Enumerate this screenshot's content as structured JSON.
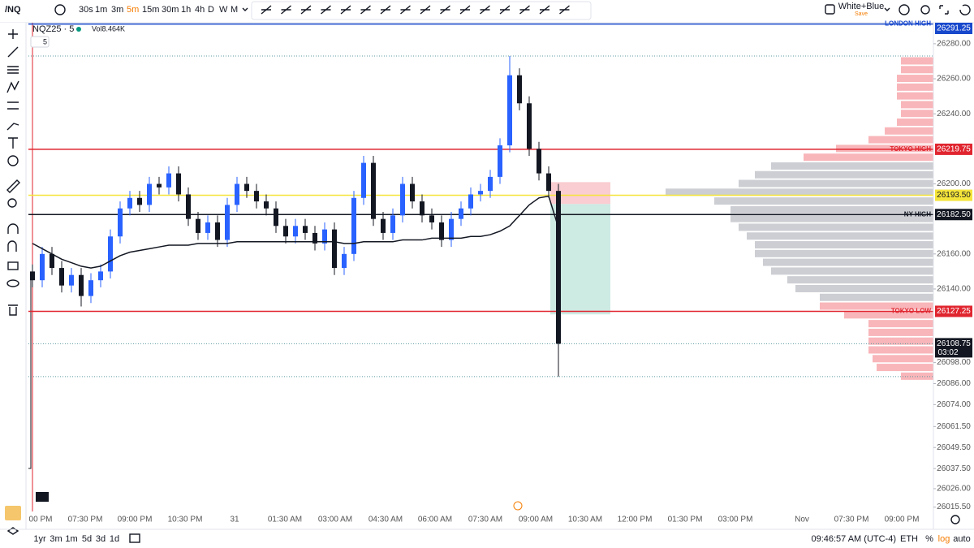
{
  "toolbar": {
    "symbol": "/NQ",
    "intervals": [
      "30s",
      "1m",
      "3m",
      "5m",
      "15m",
      "30m",
      "1h",
      "4h",
      "D",
      "W",
      "M"
    ],
    "active_interval": 3,
    "theme": "White+Blue",
    "save": "Save"
  },
  "legend": {
    "symbol": "NQZ25 · 5",
    "volume": "Vol8.464K",
    "count": "5"
  },
  "bottom_bar": {
    "ranges": [
      "1yr",
      "3m",
      "1m",
      "5d",
      "3d",
      "1d"
    ],
    "clock": "09:46:57 AM (UTC-4)",
    "session": "ETH",
    "percent": "%",
    "log": "log",
    "auto": "auto"
  },
  "chart_data": {
    "type": "candlestick",
    "ylim": [
      26013,
      26292
    ],
    "yticks": [
      {
        "value": 26280,
        "label": "26280.00"
      },
      {
        "value": 26260,
        "label": "26260.00"
      },
      {
        "value": 26240,
        "label": "26240.00"
      },
      {
        "value": 26200,
        "label": "26200.00"
      },
      {
        "value": 26160,
        "label": "26160.00"
      },
      {
        "value": 26140,
        "label": "26140.00"
      },
      {
        "value": 26098,
        "label": "26098.00"
      },
      {
        "value": 26086,
        "label": "26086.00"
      },
      {
        "value": 26074,
        "label": "26074.00"
      },
      {
        "value": 26061.5,
        "label": "26061.50"
      },
      {
        "value": 26049.5,
        "label": "26049.50"
      },
      {
        "value": 26037.5,
        "label": "26037.50"
      },
      {
        "value": 26026,
        "label": "26026.00"
      },
      {
        "value": 26015.5,
        "label": "26015.50"
      }
    ],
    "x_labels": [
      "00 PM",
      "07:30 PM",
      "09:00 PM",
      "10:30 PM",
      "31",
      "01:30 AM",
      "03:00 AM",
      "04:30 AM",
      "06:00 AM",
      "07:30 AM",
      "09:00 AM",
      "10:30 AM",
      "12:00 PM",
      "01:30 PM",
      "03:00 PM",
      "Nov",
      "07:30 PM",
      "09:00 PM"
    ],
    "up_color": "#2962ff",
    "down_color": "#131722",
    "open": [
      26150,
      26145,
      26160,
      26152,
      26142,
      26148,
      26136,
      26145,
      26150,
      26170,
      26186,
      26192,
      26188,
      26200,
      26198,
      26206,
      26194,
      26180,
      26172,
      26178,
      26168,
      26188,
      26200,
      26196,
      26190,
      26186,
      26176,
      26170,
      26176,
      26172,
      26166,
      26174,
      26152,
      26160,
      26192,
      26212,
      26180,
      26172,
      26182,
      26200,
      26190,
      26182,
      26178,
      26168,
      26180,
      26186,
      26194,
      26196,
      26204,
      26222,
      26262,
      26246,
      26220,
      26206,
      26196
    ],
    "high": [
      26154,
      26164,
      26164,
      26156,
      26152,
      26152,
      26149,
      26154,
      26174,
      26190,
      26196,
      26196,
      26204,
      26204,
      26210,
      26210,
      26198,
      26184,
      26182,
      26182,
      26192,
      26204,
      26204,
      26200,
      26194,
      26190,
      26180,
      26180,
      26180,
      26176,
      26178,
      26178,
      26164,
      26196,
      26216,
      26216,
      26184,
      26186,
      26204,
      26204,
      26194,
      26186,
      26182,
      26184,
      26190,
      26198,
      26200,
      26208,
      26226,
      26273,
      26266,
      26250,
      26224,
      26210,
      26200
    ],
    "low": [
      26141,
      26141,
      26148,
      26138,
      26138,
      26130,
      26132,
      26141,
      26146,
      26166,
      26182,
      26184,
      26184,
      26194,
      26194,
      26190,
      26176,
      26168,
      26168,
      26164,
      26164,
      26184,
      26192,
      26186,
      26182,
      26172,
      26166,
      26166,
      26168,
      26162,
      26162,
      26148,
      26148,
      26156,
      26188,
      26176,
      26168,
      26168,
      26178,
      26186,
      26178,
      26174,
      26164,
      26164,
      26176,
      26182,
      26190,
      26192,
      26200,
      26218,
      26242,
      26216,
      26202,
      26192,
      26090
    ],
    "close": [
      26145,
      26160,
      26152,
      26142,
      26148,
      26136,
      26145,
      26150,
      26170,
      26186,
      26192,
      26188,
      26200,
      26198,
      26206,
      26194,
      26180,
      26172,
      26178,
      26168,
      26188,
      26200,
      26196,
      26190,
      26186,
      26176,
      26170,
      26176,
      26172,
      26166,
      26174,
      26152,
      26160,
      26192,
      26212,
      26180,
      26172,
      26182,
      26200,
      26190,
      26182,
      26178,
      26168,
      26180,
      26186,
      26194,
      26196,
      26204,
      26222,
      26262,
      26246,
      26220,
      26206,
      26196,
      26108.75
    ],
    "countdown": "03:02",
    "vwap": [
      26166,
      26163,
      26160,
      26157,
      26155,
      26153,
      26152,
      26153,
      26156,
      26159,
      26161,
      26162,
      26163,
      26164,
      26165,
      26165,
      26165,
      26166,
      26166,
      26166,
      26166,
      26167,
      26167,
      26167,
      26167,
      26167,
      26167,
      26167,
      26167,
      26167,
      26167,
      26167,
      26166,
      26166,
      26167,
      26167,
      26167,
      26167,
      26168,
      26168,
      26168,
      26169,
      26169,
      26169,
      26169,
      26170,
      26170,
      26171,
      26173,
      26176,
      26182,
      26188,
      26192,
      26193,
      26175
    ],
    "vwap_color": "#131722",
    "levels": [
      {
        "label": "LONDON HIGH",
        "value": 26291.25,
        "value_label": "26291.25",
        "color": "#1848cc"
      },
      {
        "label": "TOKYO HIGH",
        "value": 26219.75,
        "value_label": "26219.75",
        "color": "#e0252f"
      },
      {
        "value": 26193.5,
        "value_label": "26193.50",
        "color": "#f5e43a"
      },
      {
        "label": "NY HIGH",
        "value": 26182.5,
        "value_label": "26182.50",
        "color": "#131722"
      },
      {
        "label": "TOKYO LOW",
        "value": 26127.25,
        "value_label": "26127.25",
        "color": "#e0252f"
      }
    ],
    "position": {
      "stop": 26201,
      "entry": 26188.5,
      "target": 26125.5,
      "stop_color": "#f9cdd1",
      "target_color": "#cdeae3"
    },
    "profile": {
      "prices": [
        26270,
        26265,
        26260,
        26255,
        26250,
        26245,
        26240,
        26235,
        26230,
        26225,
        26220,
        26215,
        26210,
        26205,
        26200,
        26195,
        26190,
        26185,
        26180,
        26175,
        26170,
        26165,
        26160,
        26155,
        26150,
        26145,
        26140,
        26135,
        26130,
        26125,
        26120,
        26115,
        26110,
        26105,
        26100,
        26095,
        26090
      ],
      "volumes": [
        40,
        40,
        45,
        45,
        45,
        40,
        40,
        45,
        60,
        80,
        120,
        160,
        200,
        220,
        240,
        330,
        270,
        250,
        250,
        240,
        230,
        220,
        220,
        210,
        200,
        180,
        170,
        140,
        140,
        110,
        80,
        80,
        80,
        80,
        75,
        70,
        40
      ],
      "colors": [
        "#f7a9ae",
        "#f7a9ae",
        "#f7a9ae",
        "#f7a9ae",
        "#f7a9ae",
        "#f7a9ae",
        "#f7a9ae",
        "#f7a9ae",
        "#f7a9ae",
        "#f7a9ae",
        "#f7a9ae",
        "#f7a9ae",
        "#c3c5cb",
        "#c3c5cb",
        "#c3c5cb",
        "#c3c5cb",
        "#c3c5cb",
        "#c3c5cb",
        "#c3c5cb",
        "#c3c5cb",
        "#c3c5cb",
        "#c3c5cb",
        "#c3c5cb",
        "#c3c5cb",
        "#c3c5cb",
        "#c3c5cb",
        "#c3c5cb",
        "#c3c5cb",
        "#f7a9ae",
        "#f7a9ae",
        "#f7a9ae",
        "#f7a9ae",
        "#f7a9ae",
        "#f7a9ae",
        "#f7a9ae",
        "#f7a9ae",
        "#f7a9ae"
      ]
    }
  }
}
